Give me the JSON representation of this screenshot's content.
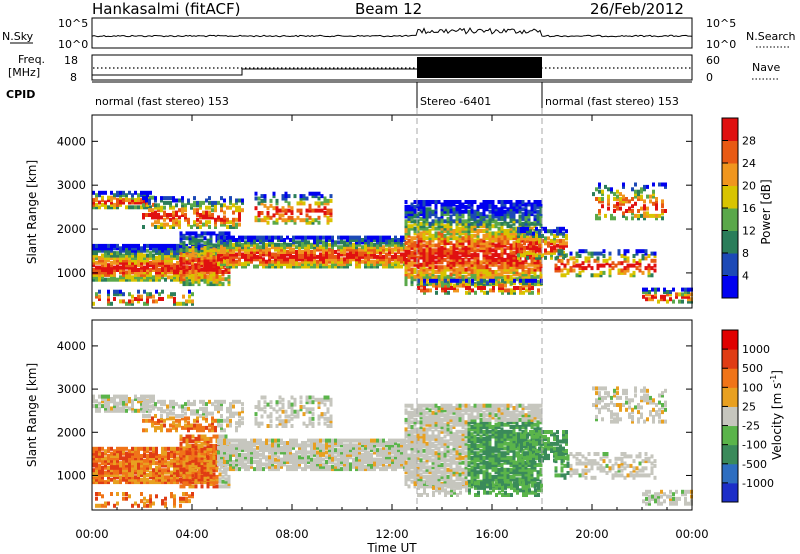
{
  "header": {
    "station": "Hankasalmi (fitACF)",
    "beam": "Beam 12",
    "date": "26/Feb/2012"
  },
  "strip_labels": {
    "nsky": "N.Sky",
    "nsearch": "N.Search",
    "freq_line1": "Freq.",
    "freq_line2": "[MHz]",
    "nave": "Nave",
    "cpid": "CPID",
    "nsky_ticks": [
      "10^5",
      "10^0"
    ],
    "nsearch_ticks": [
      "10^5",
      "10^0"
    ],
    "freq_ticks": [
      "18",
      "8"
    ],
    "nave_ticks": [
      "60",
      "0"
    ]
  },
  "cpid_segments": [
    {
      "label": "normal (fast stereo) 153",
      "start_h": 0,
      "end_h": 13
    },
    {
      "label": "Stereo -6401",
      "start_h": 13,
      "end_h": 18
    },
    {
      "label": "normal (fast stereo) 153",
      "start_h": 18,
      "end_h": 24
    }
  ],
  "chart_data": [
    {
      "type": "heatmap",
      "panel": "power",
      "ylabel": "Slant Range [km]",
      "yticks": [
        "1000",
        "2000",
        "3000",
        "4000"
      ],
      "ylim": [
        200,
        4600
      ],
      "xlim_hours": [
        0,
        24
      ],
      "colorbar": {
        "label": "Power [dB]",
        "ticks": [
          "4",
          "8",
          "12",
          "16",
          "20",
          "24",
          "28"
        ],
        "colors": [
          "#0000f0",
          "#1c49b6",
          "#2a7d5a",
          "#5aa84a",
          "#d8c400",
          "#f0961e",
          "#e85a14",
          "#e01010"
        ]
      }
    },
    {
      "type": "heatmap",
      "panel": "velocity",
      "ylabel": "Slant Range [km]",
      "yticks": [
        "1000",
        "2000",
        "3000",
        "4000"
      ],
      "ylim": [
        200,
        4600
      ],
      "xlim_hours": [
        0,
        24
      ],
      "xlabel": "Time UT",
      "xticks": [
        "00:00",
        "04:00",
        "08:00",
        "12:00",
        "16:00",
        "20:00",
        "00:00"
      ],
      "colorbar": {
        "label_main": "Velocity [m s",
        "label_exp": "-1",
        "label_close": "]",
        "ticks": [
          "1000",
          "500",
          "100",
          "25",
          "-25",
          "-100",
          "-500",
          "-1000"
        ],
        "colors": [
          "#1c2ec8",
          "#2e6ec0",
          "#3a8a5a",
          "#5ab44a",
          "#c6c6be",
          "#e8a020",
          "#f07418",
          "#e03c14",
          "#e00000"
        ]
      }
    }
  ]
}
